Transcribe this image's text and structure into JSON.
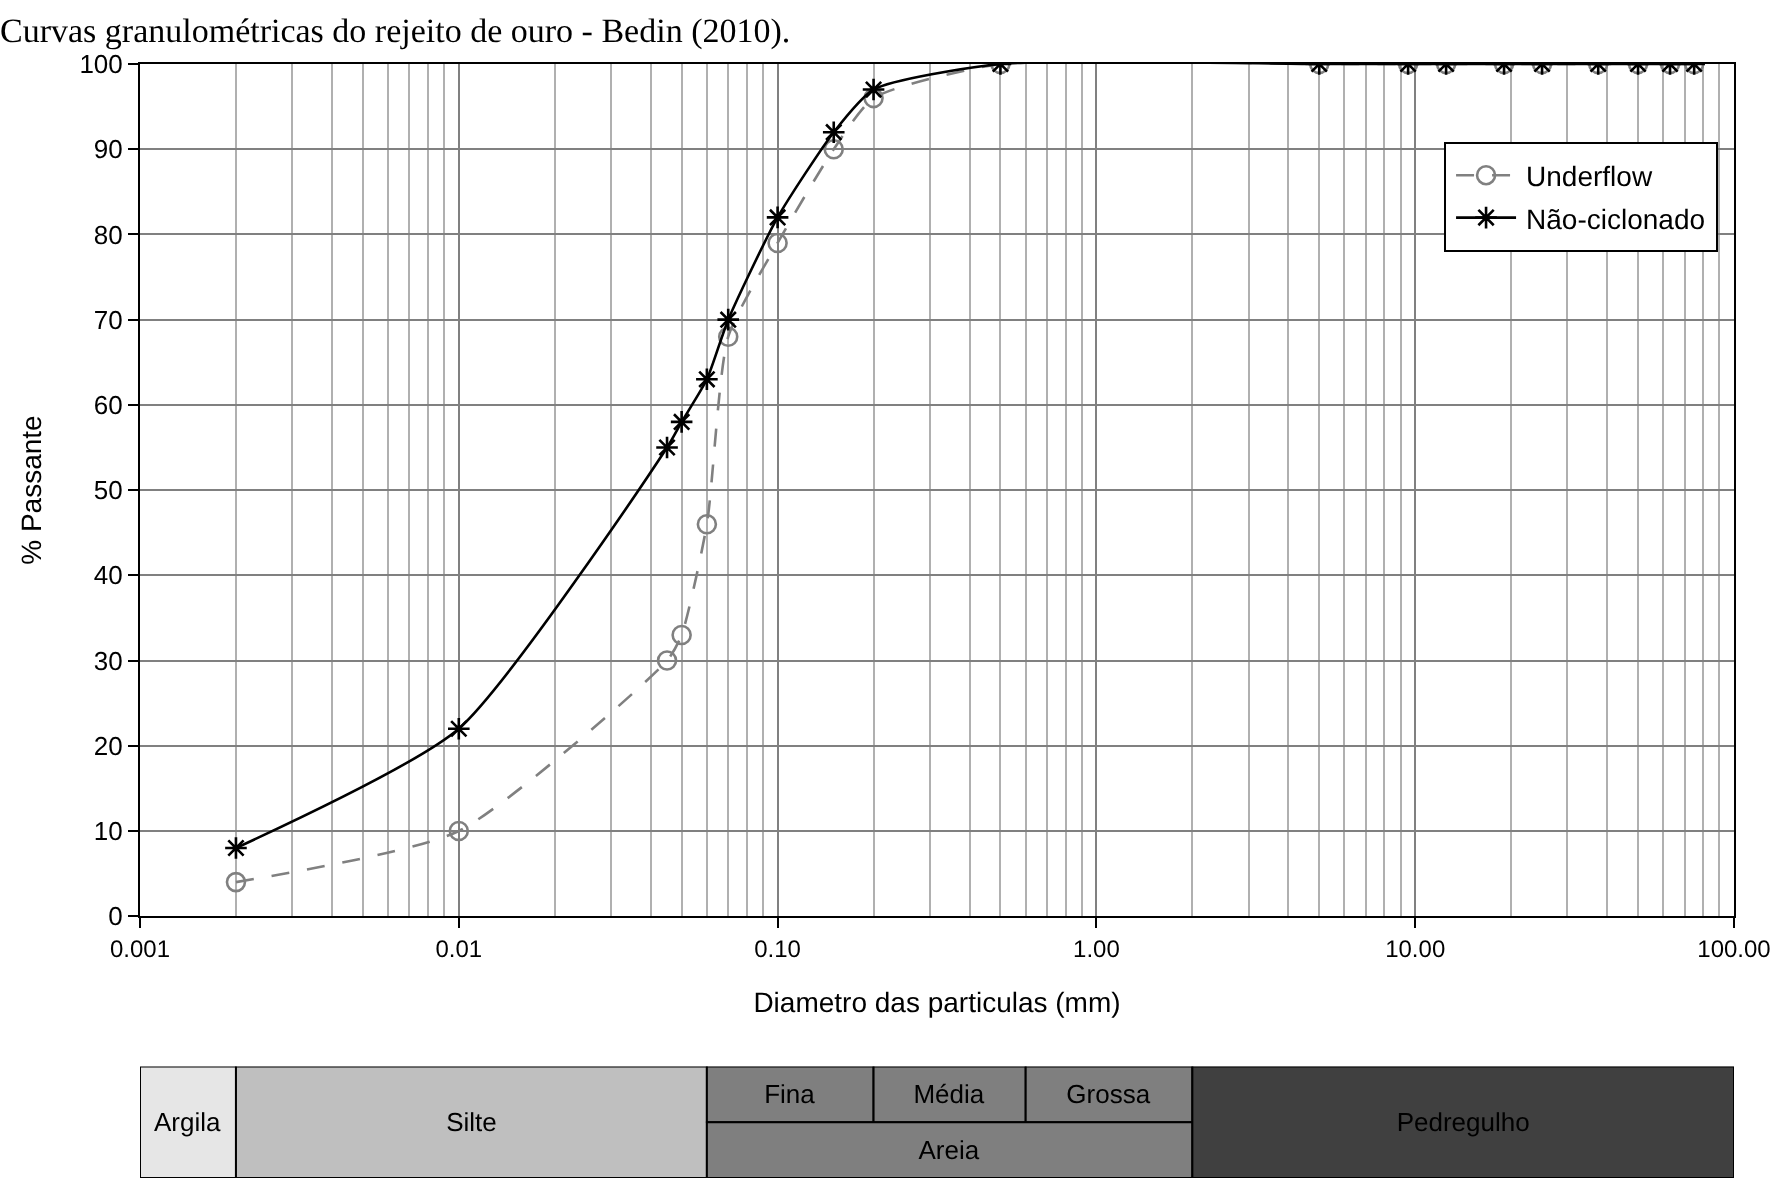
{
  "chart_data": [
    {
      "type": "line",
      "title": "Curvas granulométricas do rejeito de ouro - Bedin (2010).",
      "xlabel": "Diametro das particulas (mm)",
      "ylabel": "% Passante",
      "log": "x",
      "xlim": [
        0.001,
        100
      ],
      "xticks": [
        {
          "value": 0.001,
          "label": "0.001"
        },
        {
          "value": 0.01,
          "label": "0.01"
        },
        {
          "value": 0.1,
          "label": "0.10"
        },
        {
          "value": 1,
          "label": "1.00"
        },
        {
          "value": 10,
          "label": "10.00"
        },
        {
          "value": 100,
          "label": "100.00"
        }
      ],
      "ylim": [
        0,
        100
      ],
      "yticks": [
        0,
        10,
        20,
        30,
        40,
        50,
        60,
        70,
        80,
        90,
        100
      ],
      "grid": true,
      "legend": "top right",
      "series": [
        {
          "name": "Underflow",
          "color": "#808080",
          "marker": "circle",
          "line_style": "dashed",
          "x": [
            0.002,
            0.01,
            0.045,
            0.05,
            0.06,
            0.07,
            0.1,
            0.15,
            0.2,
            0.5,
            5,
            9.5,
            12.5,
            19,
            25,
            37.5,
            50,
            63,
            75
          ],
          "values": [
            4,
            10,
            30,
            33,
            46,
            68,
            79,
            90,
            96,
            100,
            100,
            100,
            100,
            100,
            100,
            100,
            100,
            100,
            100
          ]
        },
        {
          "name": "Não-ciclonado",
          "color": "#000000",
          "marker": "cross",
          "line_style": "solid",
          "x": [
            0.002,
            0.01,
            0.045,
            0.05,
            0.06,
            0.07,
            0.1,
            0.15,
            0.2,
            0.5,
            5,
            9.5,
            12.5,
            19,
            25,
            37.5,
            50,
            63,
            75
          ],
          "values": [
            8,
            22,
            55,
            58,
            63,
            70,
            82,
            92,
            97,
            100,
            100,
            100,
            100,
            100,
            100,
            100,
            100,
            100,
            100
          ]
        }
      ]
    },
    {
      "type": "bar",
      "orientation": "horizontal",
      "log": "x",
      "xlim": [
        0.001,
        100
      ],
      "tick_labels": false,
      "categories": [
        null
      ],
      "series": [
        {
          "color": "#e6e6e6",
          "base": [
            0.001
          ],
          "values": [
            0.001
          ],
          "value_labels": [
            "Argila"
          ]
        },
        {
          "color": "#bfbfbf",
          "base": [
            0.002
          ],
          "values": [
            0.058
          ],
          "value_labels": [
            "Silte"
          ]
        },
        {
          "color": "#7f7f7f",
          "base": [
            0.06
          ],
          "values": [
            0.14
          ],
          "value_labels": [
            "Fina"
          ]
        },
        {
          "color": "#7f7f7f",
          "base": [
            0.2
          ],
          "values": [
            0.4
          ],
          "value_labels": [
            "Média"
          ]
        },
        {
          "color": "#7f7f7f",
          "base": [
            0.6
          ],
          "values": [
            1.4
          ],
          "value_labels": [
            "Grossa"
          ]
        },
        {
          "color": "#7f7f7f",
          "base": [
            0.06
          ],
          "values": [
            1.94
          ],
          "value_labels": [
            "Areia"
          ]
        },
        {
          "color": "#404040",
          "base": [
            2
          ],
          "values": [
            98
          ],
          "value_labels": [
            "Pedregulho"
          ]
        }
      ]
    }
  ]
}
